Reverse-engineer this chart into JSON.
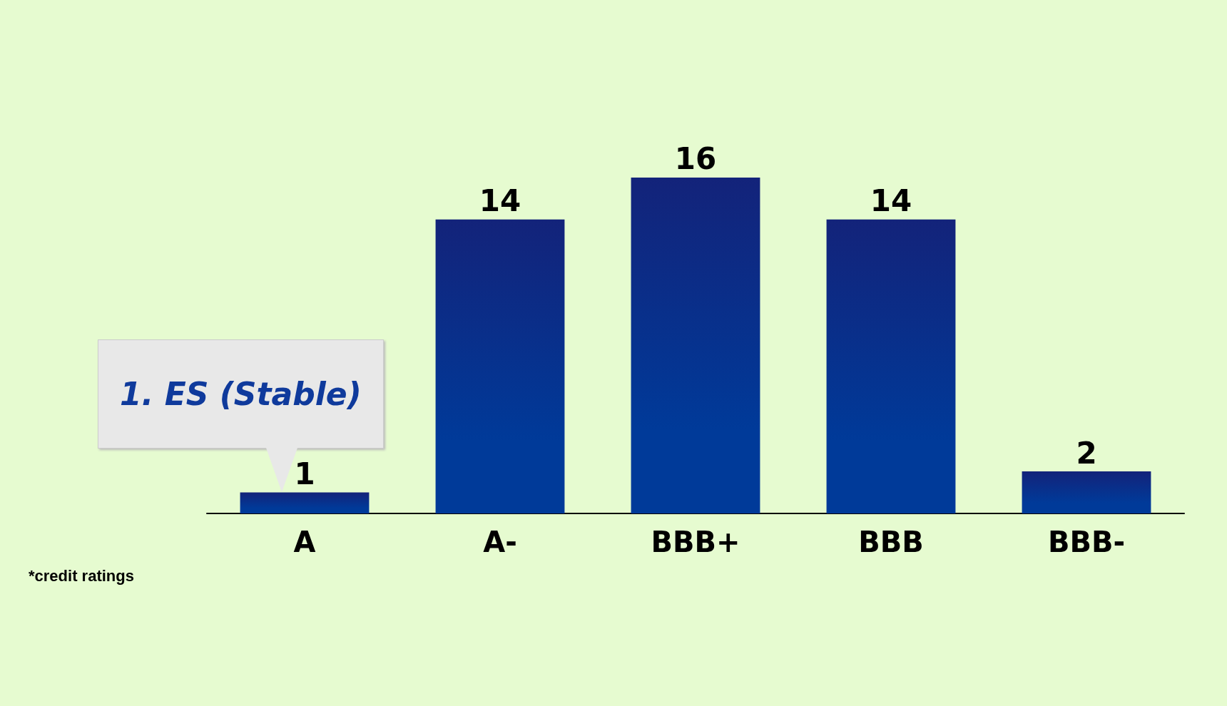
{
  "chart_data": {
    "type": "bar",
    "categories": [
      "A",
      "A-",
      "BBB+",
      "BBB",
      "BBB-"
    ],
    "values": [
      1,
      14,
      16,
      14,
      2
    ],
    "color": "#13237a",
    "data_labels": true,
    "grid": false,
    "annotations": [
      {
        "text": "1. ES (Stable)",
        "x": "A",
        "y": 1
      },
      "*credit ratings"
    ]
  }
}
